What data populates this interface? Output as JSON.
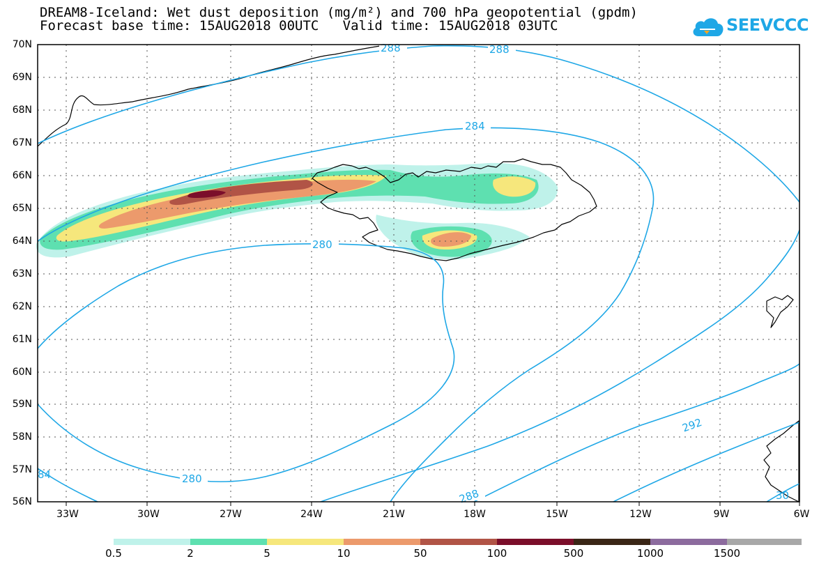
{
  "title_line1": "DREAM8-Iceland: Wet dust deposition (mg/m²) and 700 hPa geopotential (gpdm)",
  "title_line2": "Forecast base time: 15AUG2018 00UTC   Valid time: 15AUG2018 03UTC",
  "logo_text": "SEEVCCC",
  "lat_labels": [
    "70N",
    "69N",
    "68N",
    "67N",
    "66N",
    "65N",
    "64N",
    "63N",
    "62N",
    "61N",
    "60N",
    "59N",
    "58N",
    "57N",
    "56N"
  ],
  "lon_labels": [
    "33W",
    "30W",
    "27W",
    "24W",
    "21W",
    "18W",
    "15W",
    "12W",
    "9W",
    "6W"
  ],
  "contour_labels": [
    "288",
    "288",
    "284",
    "280",
    "280",
    "292",
    "288",
    "84",
    "30"
  ],
  "colorbar": {
    "labels": [
      "0.5",
      "2",
      "5",
      "10",
      "50",
      "100",
      "500",
      "1000",
      "1500"
    ],
    "colors": [
      "#bff2ea",
      "#5ee0b0",
      "#f6e77c",
      "#ec9a6c",
      "#b15446",
      "#7b0e2a",
      "#3a2616",
      "#8c6b9e",
      "#a8a8a8"
    ]
  },
  "colors": {
    "contour": "#1ea7e6",
    "coast": "#000000",
    "grid": "#555555"
  }
}
